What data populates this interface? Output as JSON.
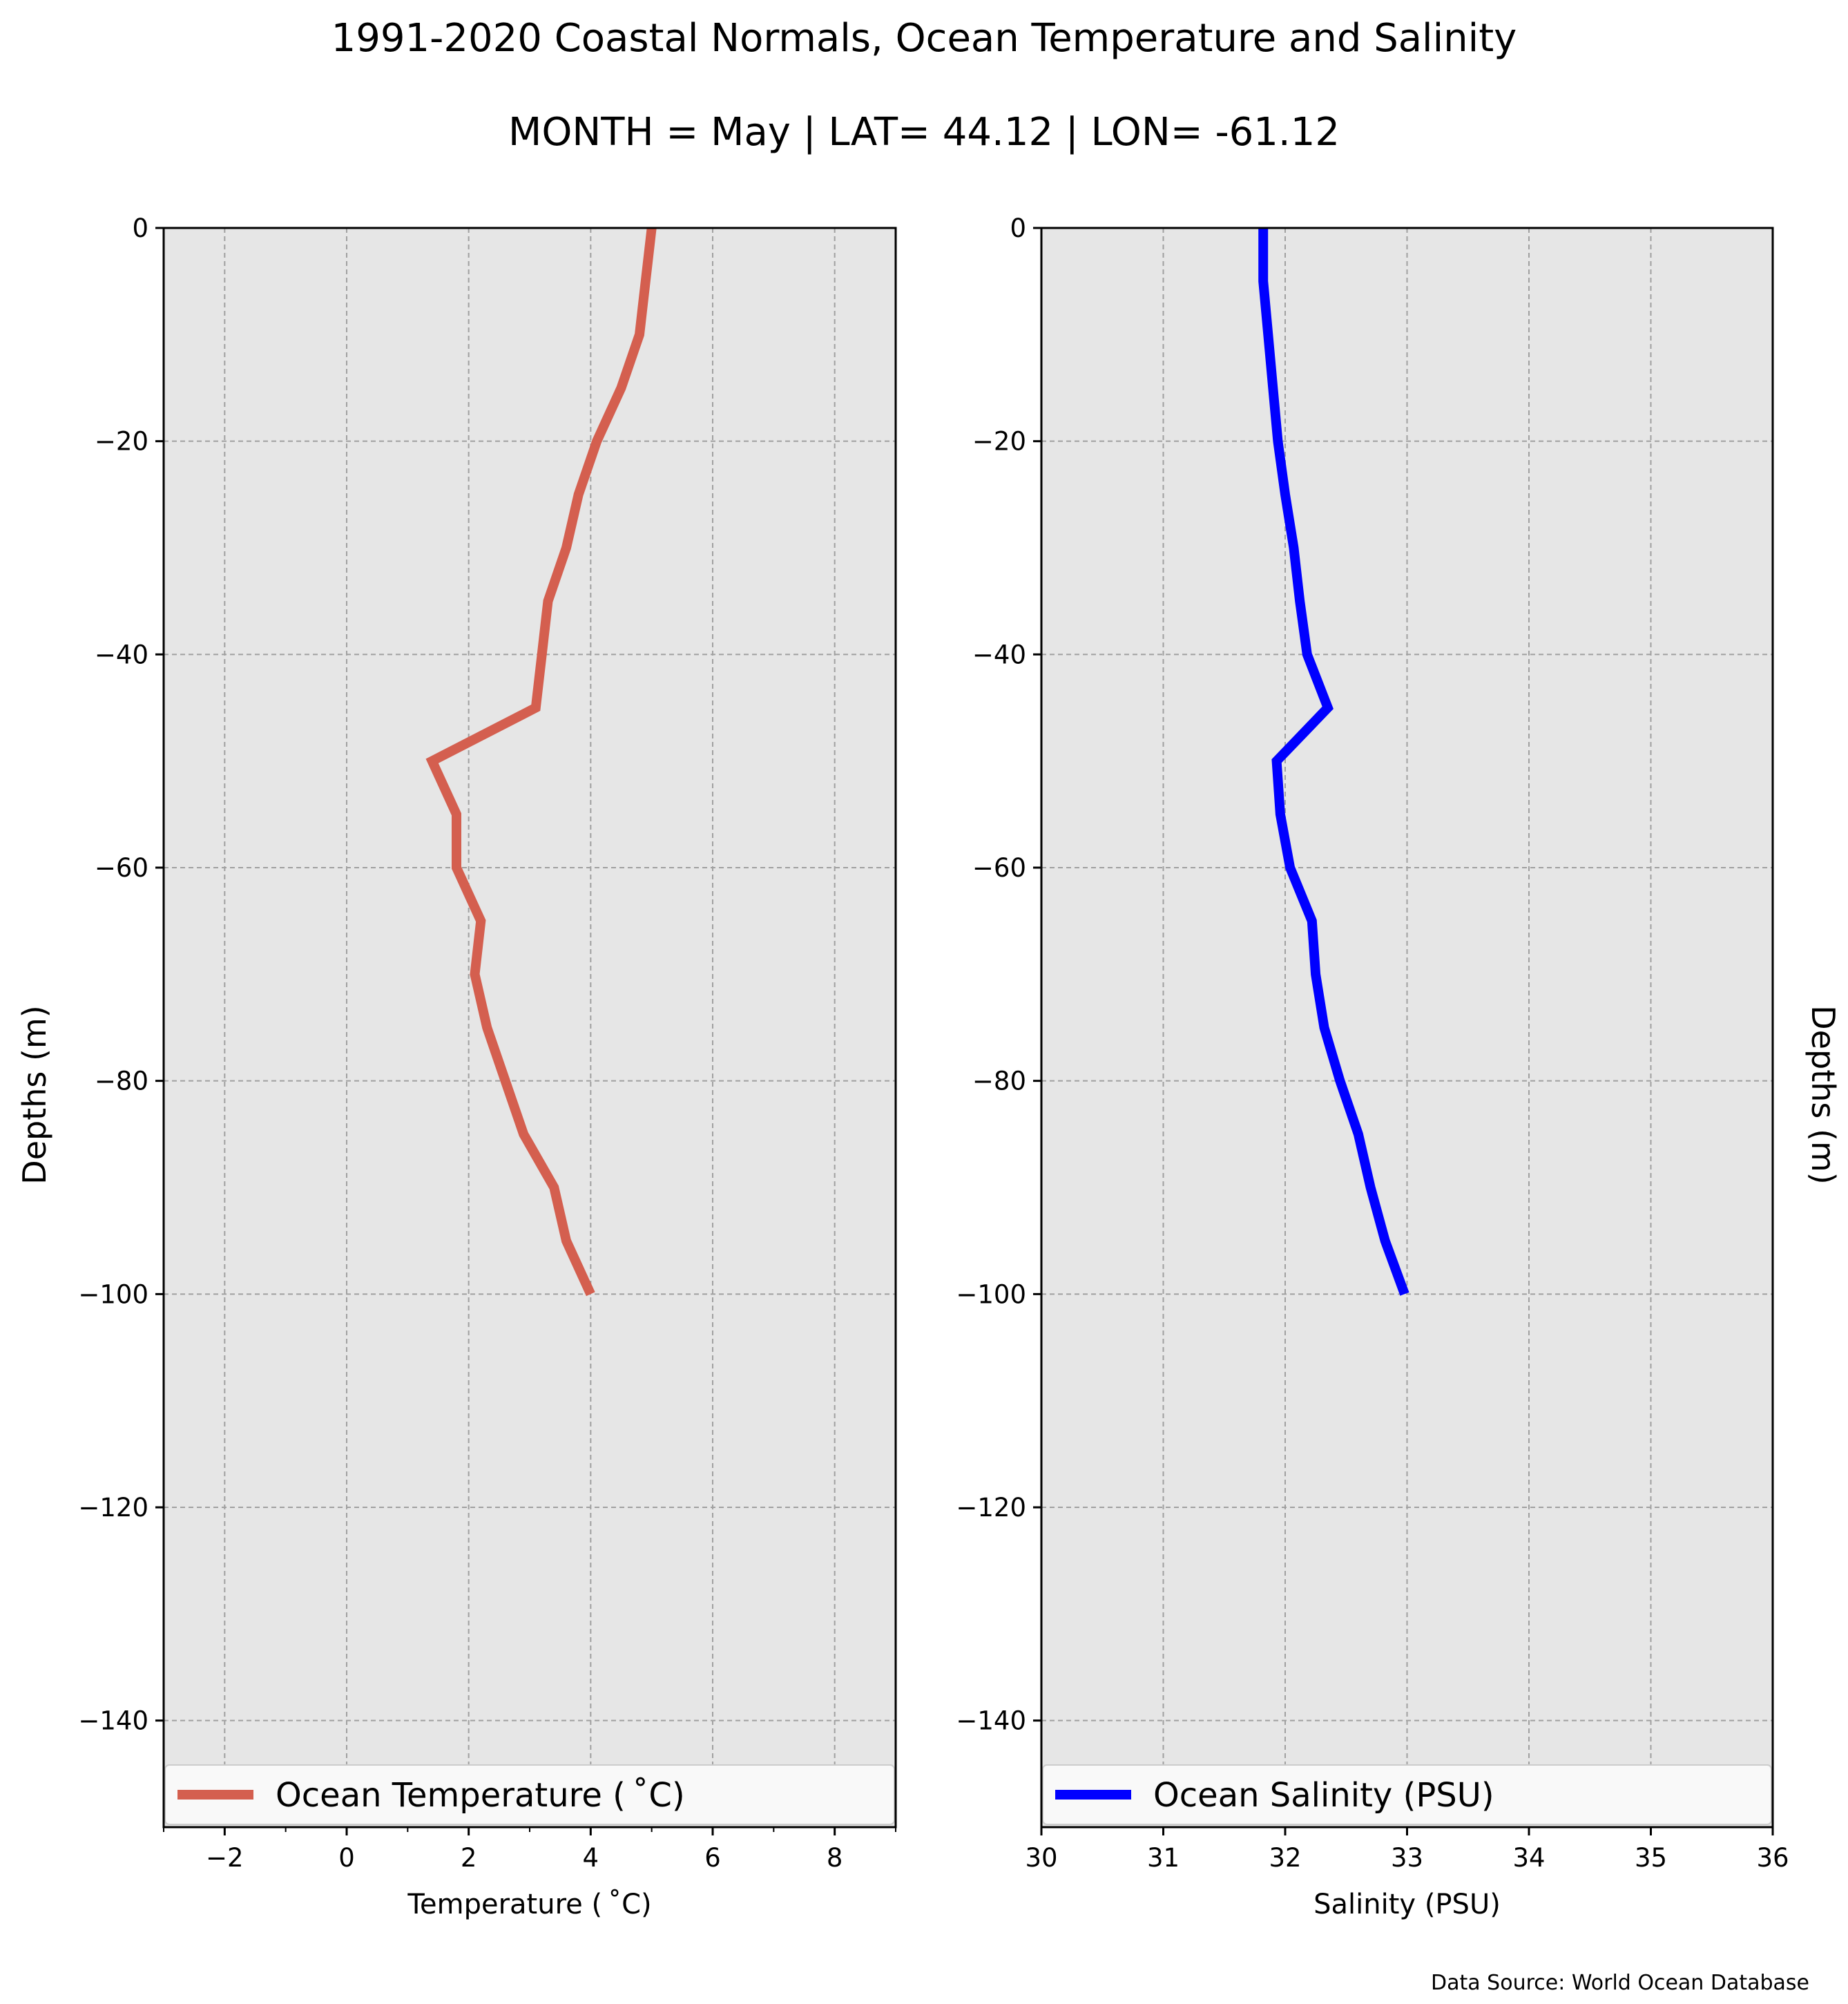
{
  "title": "1991-2020 Coastal Normals, Ocean Temperature and Salinity",
  "subtitle": "MONTH = May | LAT= 44.12 | LON= -61.12",
  "source": "Data Source: World Ocean Database",
  "chart_data": [
    {
      "type": "line",
      "panel": "left",
      "xlabel": "Temperature ($^\\circ$C)",
      "xlabel_display": "Temperature ( ˚C)",
      "ylabel": "Depths (m)",
      "xlim": [
        -3,
        9
      ],
      "ylim": [
        -150,
        0
      ],
      "xticks": [
        -2,
        0,
        2,
        4,
        6,
        8
      ],
      "xtick_labels": [
        "−2",
        "0",
        "2",
        "4",
        "6",
        "8"
      ],
      "yticks": [
        0,
        -20,
        -40,
        -60,
        -80,
        -100,
        -120,
        -140
      ],
      "ytick_labels": [
        "0",
        "−20",
        "−40",
        "−60",
        "−80",
        "−100",
        "−120",
        "−140"
      ],
      "grid": true,
      "legend_placement": "lower",
      "series": [
        {
          "name": "Ocean Temperature ( ˚C)",
          "color": "#d45f4f",
          "depth": [
            0,
            -5,
            -10,
            -15,
            -20,
            -25,
            -30,
            -35,
            -40,
            -45,
            -50,
            -55,
            -60,
            -65,
            -70,
            -75,
            -80,
            -85,
            -90,
            -95,
            -100
          ],
          "values": [
            5.0,
            4.9,
            4.8,
            4.5,
            4.1,
            3.8,
            3.6,
            3.3,
            3.2,
            3.1,
            1.4,
            1.8,
            1.8,
            2.2,
            2.1,
            2.3,
            2.6,
            2.9,
            3.4,
            3.6,
            4.0
          ]
        }
      ]
    },
    {
      "type": "line",
      "panel": "right",
      "xlabel": "Salinity (PSU)",
      "ylabel": "Depths (m)",
      "xlim": [
        30,
        36
      ],
      "ylim": [
        -150,
        0
      ],
      "xticks": [
        30,
        31,
        32,
        33,
        34,
        35,
        36
      ],
      "xtick_labels": [
        "30",
        "31",
        "32",
        "33",
        "34",
        "35",
        "36"
      ],
      "yticks": [
        0,
        -20,
        -40,
        -60,
        -80,
        -100,
        -120,
        -140
      ],
      "ytick_labels": [
        "0",
        "−20",
        "−40",
        "−60",
        "−80",
        "−100",
        "−120",
        "−140"
      ],
      "grid": true,
      "legend_placement": "lower",
      "series": [
        {
          "name": "Ocean Salinity (PSU)",
          "color": "#0000ff",
          "depth": [
            0,
            -5,
            -10,
            -15,
            -20,
            -25,
            -30,
            -35,
            -40,
            -45,
            -50,
            -55,
            -60,
            -65,
            -70,
            -75,
            -80,
            -85,
            -90,
            -95,
            -100
          ],
          "values": [
            31.82,
            31.82,
            31.86,
            31.9,
            31.94,
            32.0,
            32.07,
            32.12,
            32.18,
            32.35,
            31.93,
            31.96,
            32.04,
            32.22,
            32.25,
            32.32,
            32.45,
            32.6,
            32.7,
            32.82,
            32.98
          ]
        }
      ]
    }
  ]
}
